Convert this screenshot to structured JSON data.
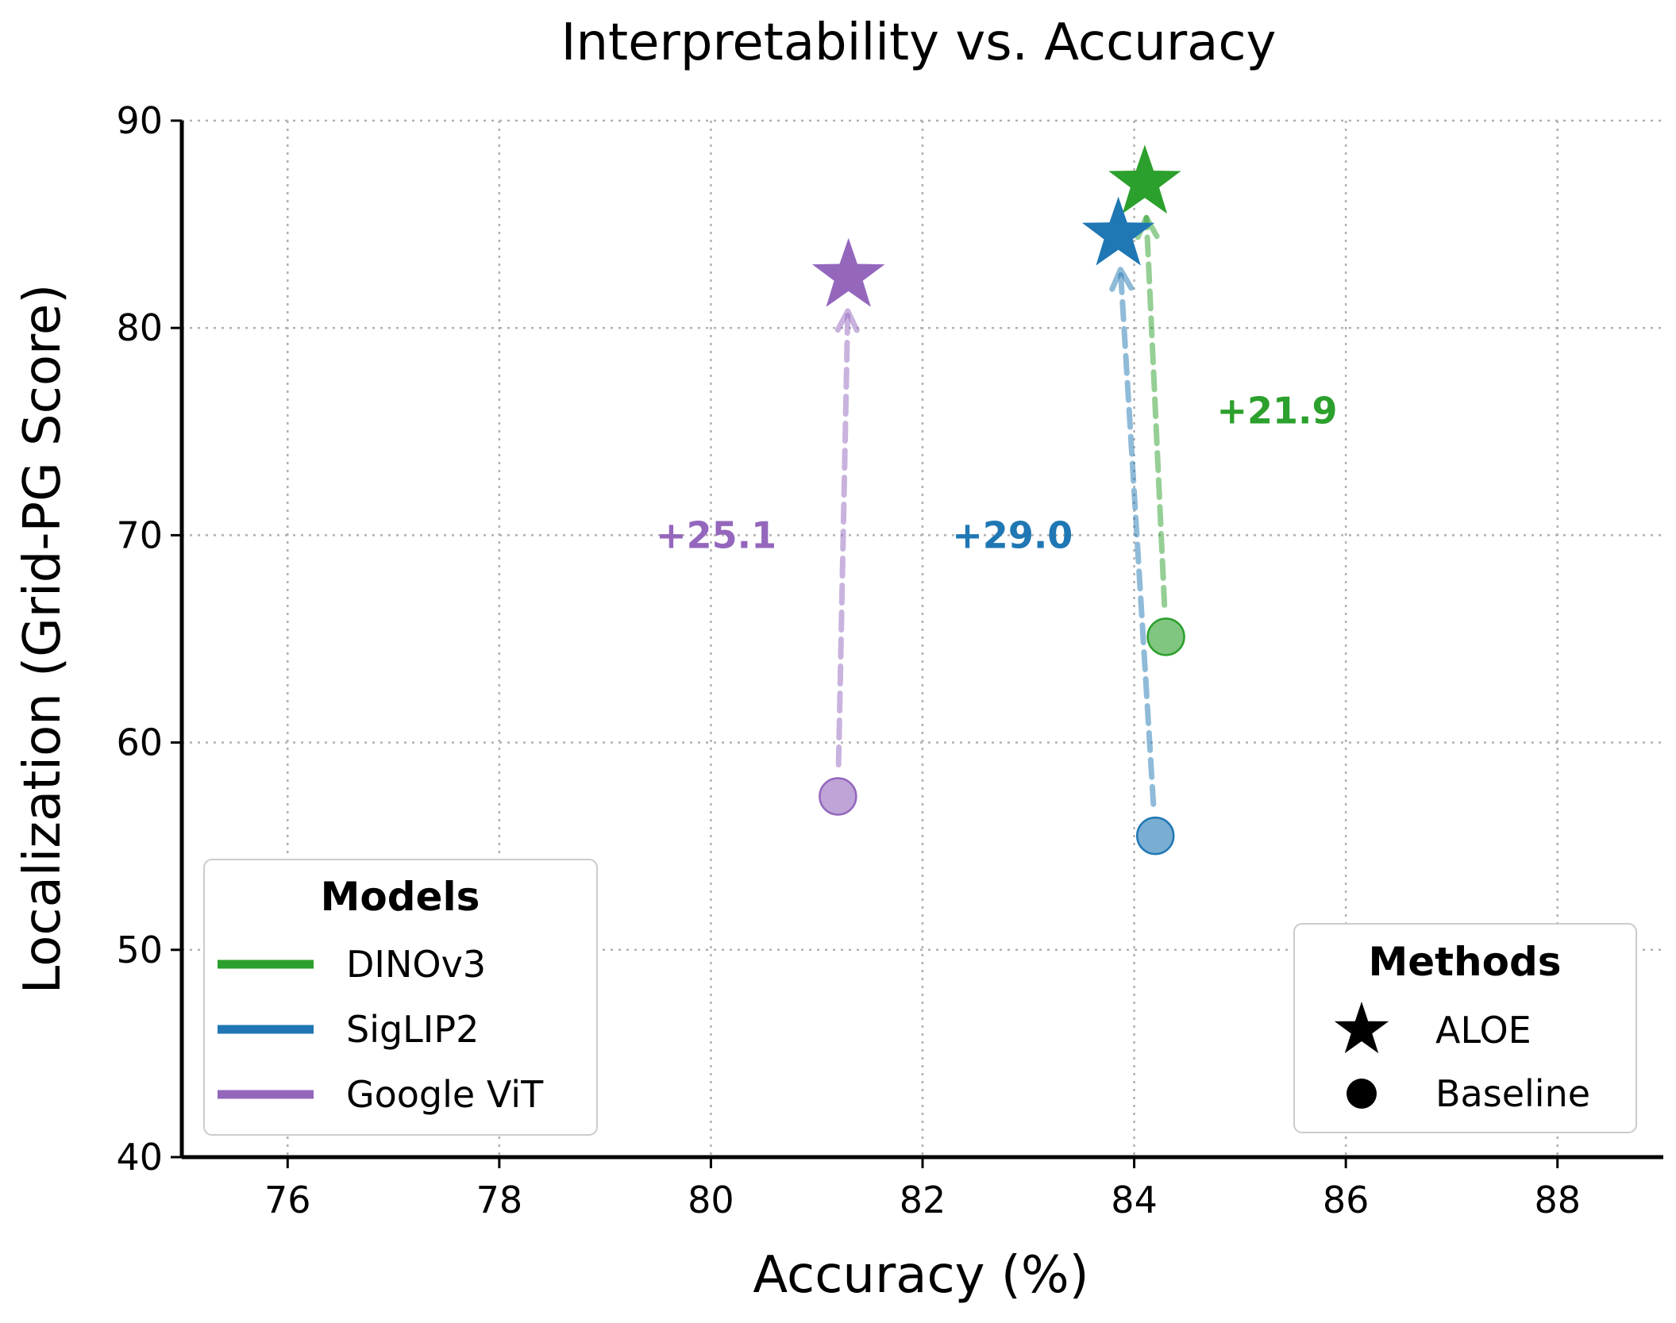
{
  "chart_data": {
    "type": "scatter",
    "title": "Interpretability vs. Accuracy",
    "xlabel": "Accuracy (%)",
    "ylabel": "Localization (Grid-PG Score)",
    "xlim": [
      75,
      89
    ],
    "ylim": [
      40,
      90
    ],
    "xticks": [
      76,
      78,
      80,
      82,
      84,
      86,
      88
    ],
    "yticks": [
      40,
      50,
      60,
      70,
      80,
      90
    ],
    "grid": true,
    "series": [
      {
        "name": "DINOv3",
        "color": "#2ca02c",
        "baseline": {
          "x": 84.3,
          "y": 65.1
        },
        "aloe": {
          "x": 84.1,
          "y": 87.0
        },
        "gain_label": "+21.9",
        "gain_label_pos": {
          "x": 85.35,
          "y": 76
        }
      },
      {
        "name": "SigLIP2",
        "color": "#1f77b4",
        "baseline": {
          "x": 84.2,
          "y": 55.5
        },
        "aloe": {
          "x": 83.85,
          "y": 84.5
        },
        "gain_label": "+29.0",
        "gain_label_pos": {
          "x": 82.85,
          "y": 70
        }
      },
      {
        "name": "Google ViT",
        "color": "#9467bd",
        "baseline": {
          "x": 81.2,
          "y": 57.4
        },
        "aloe": {
          "x": 81.3,
          "y": 82.5
        },
        "gain_label": "+25.1",
        "gain_label_pos": {
          "x": 80.05,
          "y": 70
        }
      }
    ],
    "legends": {
      "models": {
        "title": "Models",
        "placement": "lower-left"
      },
      "methods": {
        "title": "Methods",
        "placement": "lower-right",
        "items": [
          {
            "label": "ALOE",
            "marker": "star"
          },
          {
            "label": "Baseline",
            "marker": "circle"
          }
        ]
      }
    }
  }
}
